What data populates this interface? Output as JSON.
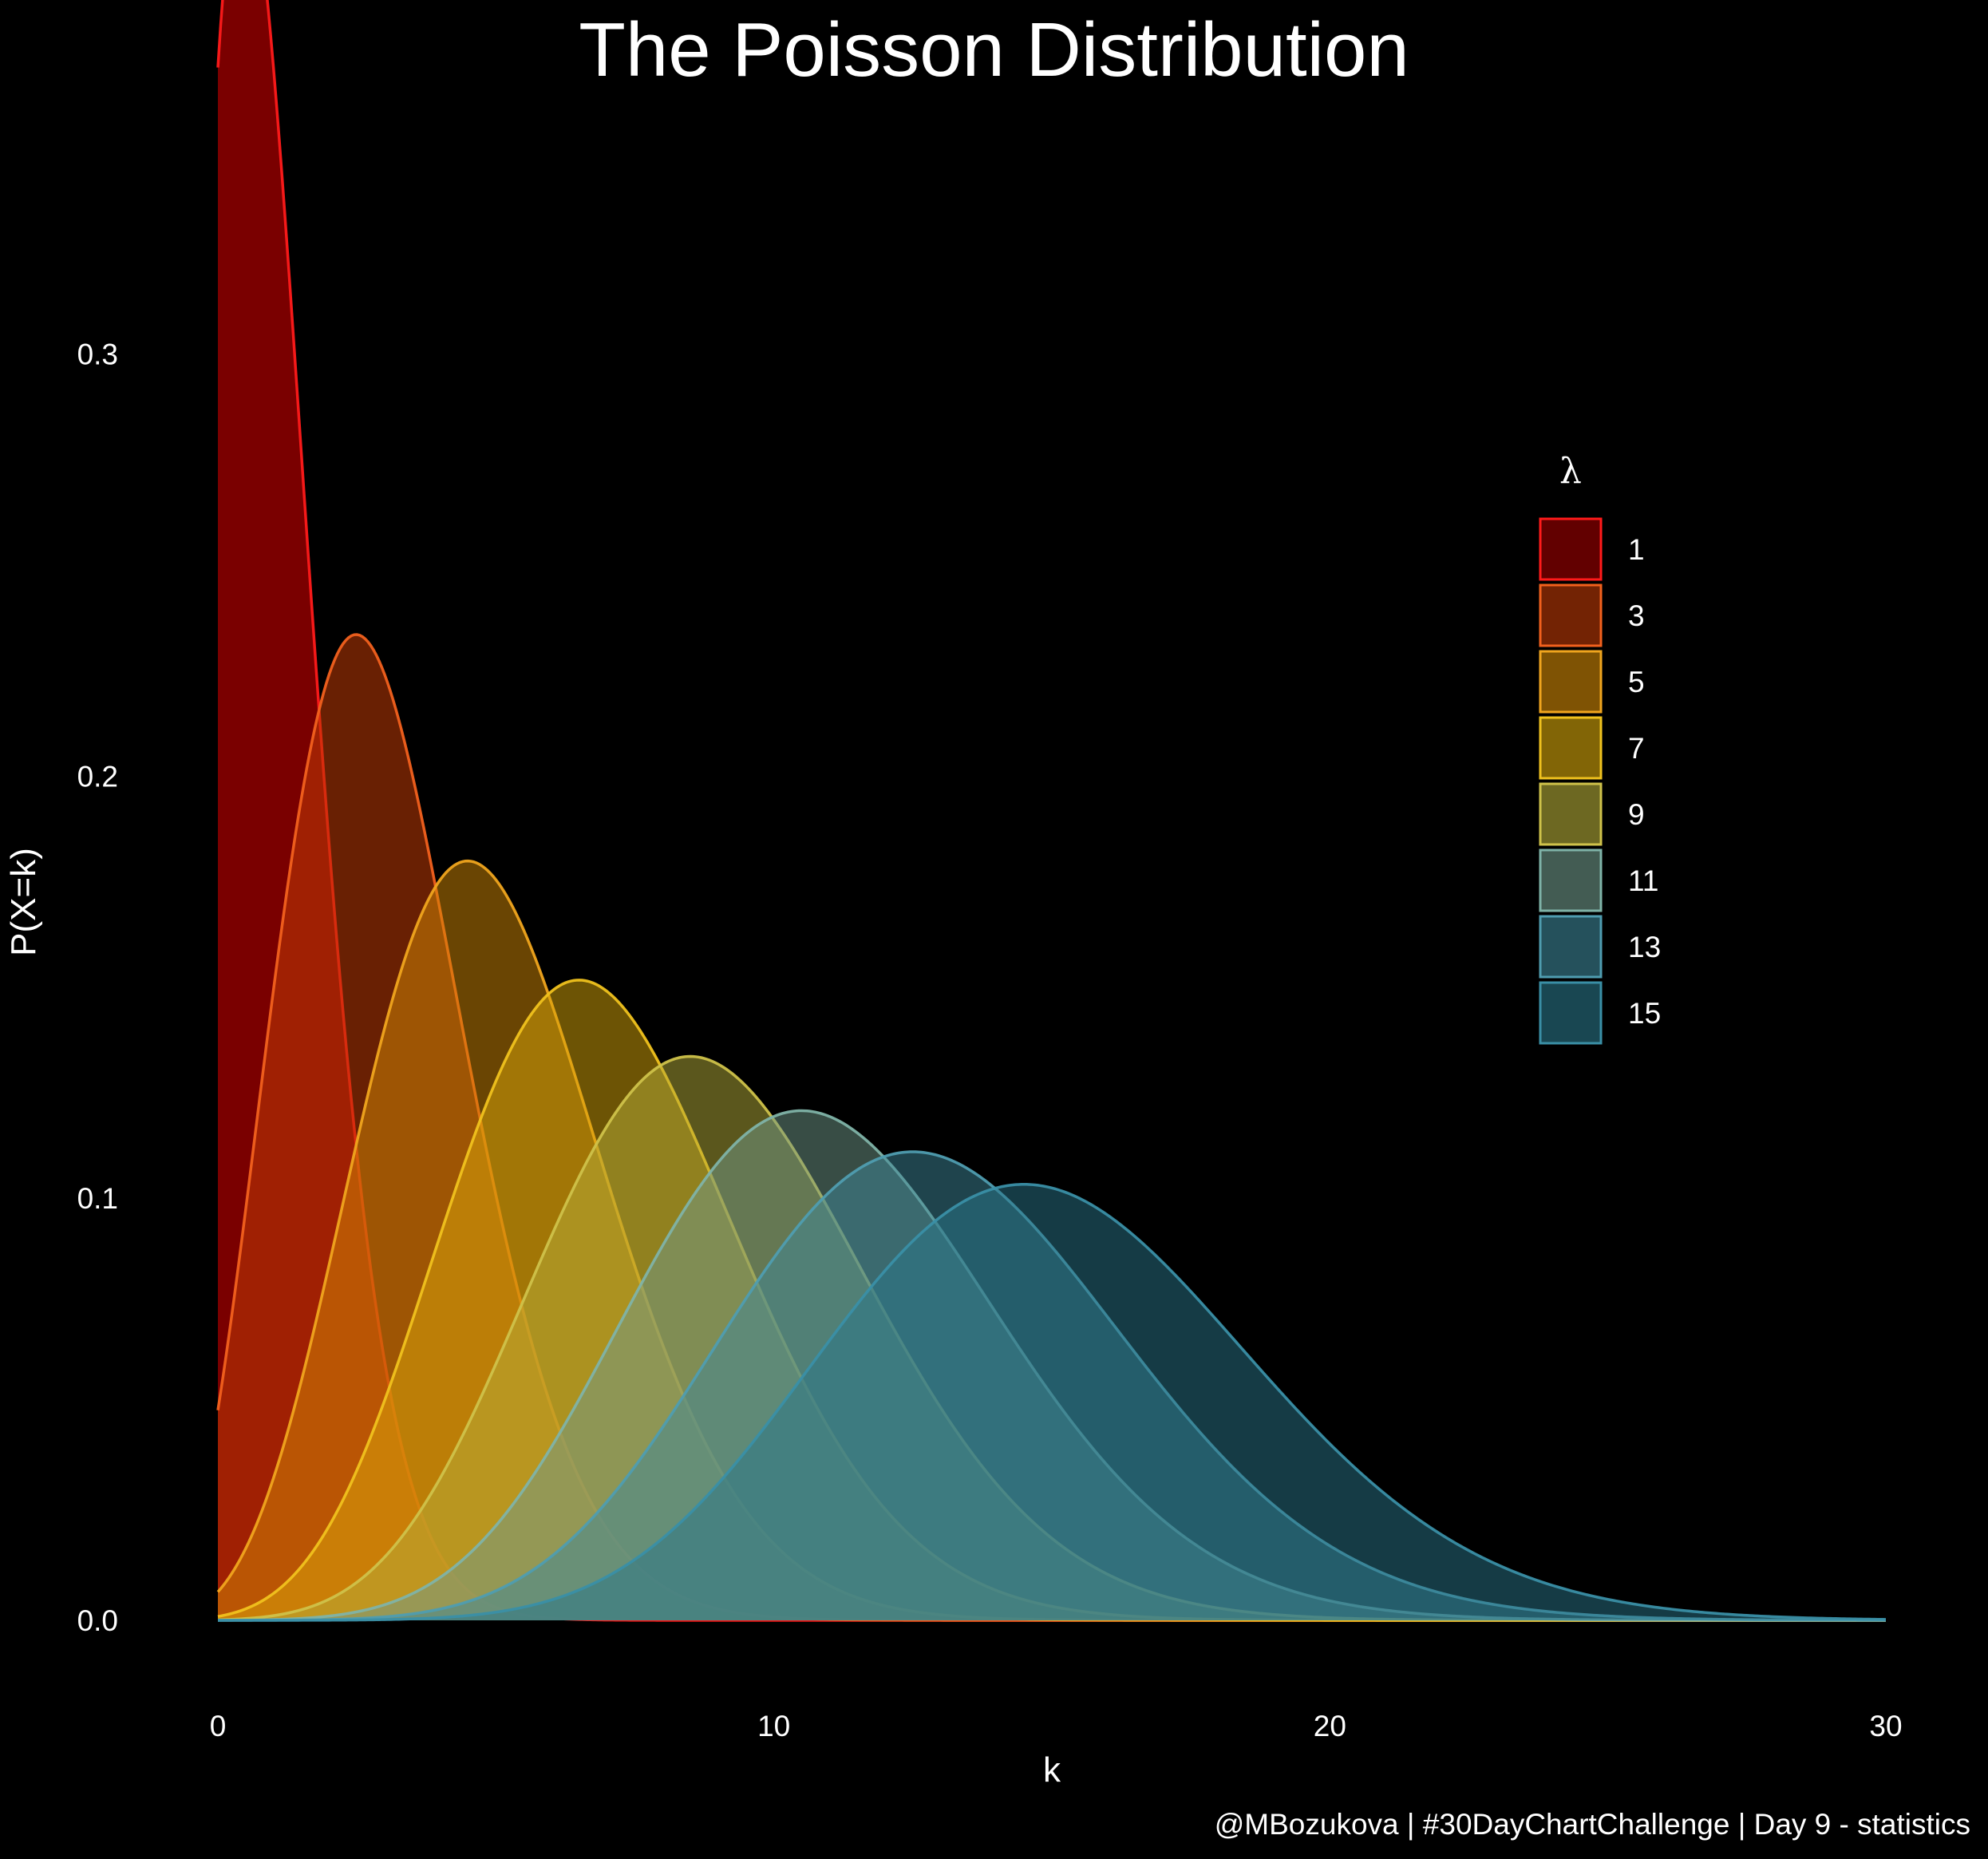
{
  "chart_data": {
    "type": "area",
    "title": "The Poisson Distribution",
    "xlabel": "k",
    "ylabel": "P(X=k)",
    "caption": "@MBozukova | #30DayChartChallenge | Day 9 - statistics",
    "xlim": [
      0,
      30
    ],
    "ylim": [
      0,
      0.34
    ],
    "x_ticks": [
      0,
      10,
      20,
      30
    ],
    "x_tick_labels": [
      "0",
      "10",
      "20",
      "30"
    ],
    "y_ticks": [
      0.0,
      0.1,
      0.2,
      0.3
    ],
    "y_tick_labels": [
      "0.0",
      "0.1",
      "0.2",
      "0.3"
    ],
    "grid": false,
    "legend": {
      "title": "λ",
      "placement": "right"
    },
    "series": [
      {
        "name": "1",
        "lambda": 1,
        "color": "#ff1a1a",
        "fill": "#a30000",
        "fill_opacity": 0.75
      },
      {
        "name": "3",
        "lambda": 3,
        "color": "#f2611d",
        "fill": "#c03b06",
        "fill_opacity": 0.55
      },
      {
        "name": "5",
        "lambda": 5,
        "color": "#f0a51e",
        "fill": "#d38a06",
        "fill_opacity": 0.5
      },
      {
        "name": "7",
        "lambda": 7,
        "color": "#f0c21e",
        "fill": "#d9a80a",
        "fill_opacity": 0.5
      },
      {
        "name": "9",
        "lambda": 9,
        "color": "#cfc24a",
        "fill": "#b6ad39",
        "fill_opacity": 0.5
      },
      {
        "name": "11",
        "lambda": 11,
        "color": "#7fb3a8",
        "fill": "#6f9a8a",
        "fill_opacity": 0.5
      },
      {
        "name": "13",
        "lambda": 13,
        "color": "#4f9db0",
        "fill": "#3e8799",
        "fill_opacity": 0.5
      },
      {
        "name": "15",
        "lambda": 15,
        "color": "#3a8fa6",
        "fill": "#2a7689",
        "fill_opacity": 0.5
      }
    ]
  }
}
